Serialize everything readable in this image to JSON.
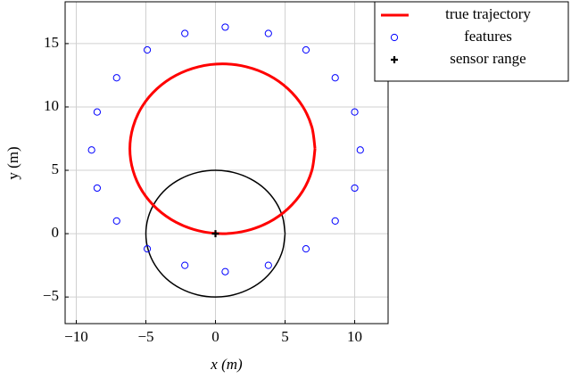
{
  "chart_data": {
    "type": "scatter",
    "xlabel": "x (m)",
    "ylabel": "y (m)",
    "xlim": [
      -10.8,
      12.4
    ],
    "ylim": [
      -7.1,
      18.3
    ],
    "xticks": [
      {
        "value": -10,
        "label": "−10"
      },
      {
        "value": -5,
        "label": "−5"
      },
      0,
      5,
      10
    ],
    "yticks": [
      {
        "value": -5,
        "label": "−5"
      },
      0,
      5,
      10,
      15
    ],
    "grid": true,
    "legend": "outside-upper-right",
    "series": [
      {
        "name": "true trajectory",
        "color": "#ff0000",
        "mode": "line",
        "line_width": 3,
        "x": [
          7.15,
          6.92,
          6.26,
          5.2,
          3.83,
          2.22,
          0.5,
          -1.22,
          -2.83,
          -4.2,
          -5.26,
          -5.92,
          -6.15,
          -5.92,
          -5.26,
          -4.2,
          -2.83,
          -1.22,
          0.5,
          2.22,
          3.83,
          5.2,
          6.26,
          6.92,
          7.15
        ],
        "values": [
          6.7,
          8.43,
          10.05,
          11.44,
          12.5,
          13.17,
          13.4,
          13.17,
          12.5,
          11.44,
          10.05,
          8.43,
          6.7,
          4.97,
          3.35,
          1.96,
          0.9,
          0.23,
          0,
          0.23,
          0.9,
          1.96,
          3.35,
          4.97,
          6.7
        ]
      },
      {
        "name": "features",
        "color": "#0000ff",
        "mode": "marker",
        "marker": "circle",
        "x": [
          0.7,
          3.8,
          6.5,
          8.6,
          10,
          10.4,
          10,
          8.6,
          6.5,
          3.8,
          0.7,
          -2.2,
          -4.9,
          -7.1,
          -8.5,
          -8.9,
          -8.5,
          -7.1,
          -4.9,
          -2.2
        ],
        "values": [
          16.3,
          15.8,
          14.5,
          12.3,
          9.6,
          6.6,
          3.6,
          1,
          -1.2,
          -2.5,
          -3,
          -2.5,
          -1.2,
          1,
          3.6,
          6.6,
          9.6,
          12.3,
          14.5,
          15.8
        ]
      },
      {
        "name": "sensor range",
        "color": "#000000",
        "mode": "marker",
        "marker": "plus",
        "x": [
          0
        ],
        "values": [
          0
        ]
      },
      {
        "color": "#000000",
        "mode": "line",
        "line_width": 1.5,
        "x": [
          5,
          4.83,
          4.33,
          3.54,
          2.5,
          1.29,
          0,
          -1.29,
          -2.5,
          -3.54,
          -4.33,
          -4.83,
          -5,
          -4.83,
          -4.33,
          -3.54,
          -2.5,
          -1.29,
          0,
          1.29,
          2.5,
          3.54,
          4.33,
          4.83,
          5
        ],
        "values": [
          0,
          1.29,
          2.5,
          3.54,
          4.33,
          4.83,
          5,
          4.83,
          4.33,
          3.54,
          2.5,
          1.29,
          0,
          -1.29,
          -2.5,
          -3.54,
          -4.33,
          -4.83,
          -5,
          -4.83,
          -4.33,
          -3.54,
          -2.5,
          -1.29,
          0
        ]
      }
    ]
  }
}
